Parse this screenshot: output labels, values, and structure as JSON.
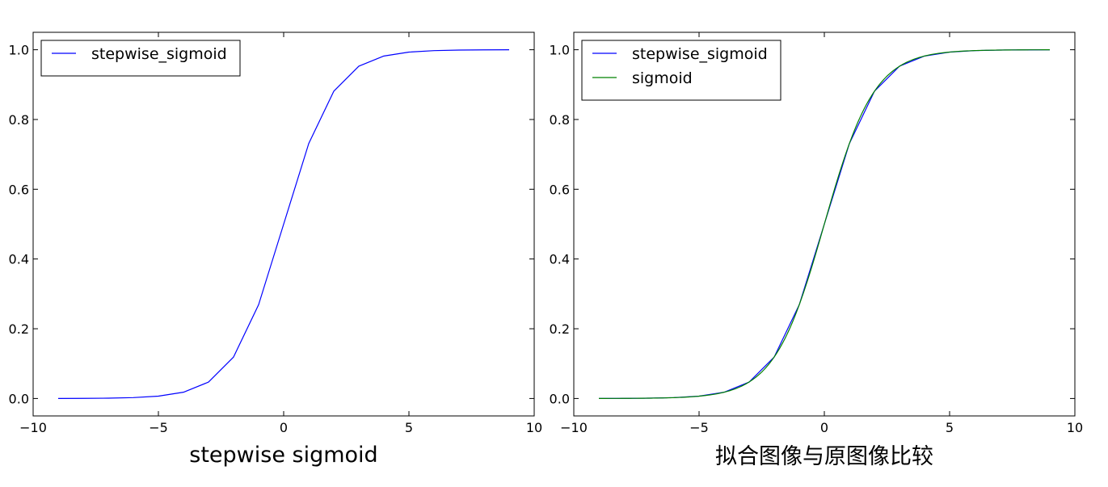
{
  "chart_data": [
    {
      "type": "line",
      "xlabel": "stepwise sigmoid",
      "xlim": [
        -10,
        10
      ],
      "ylim": [
        -0.05,
        1.05
      ],
      "xticks": [
        -10,
        -5,
        0,
        5,
        10
      ],
      "xtick_labels": [
        "−10",
        "−5",
        "0",
        "5",
        "10"
      ],
      "yticks": [
        0.0,
        0.2,
        0.4,
        0.6,
        0.8,
        1.0
      ],
      "ytick_labels": [
        "0.0",
        "0.2",
        "0.4",
        "0.6",
        "0.8",
        "1.0"
      ],
      "grid": false,
      "legend_position": "upper-left",
      "series": [
        {
          "name": "stepwise_sigmoid",
          "color": "#0000ff",
          "x": [
            -9,
            -8,
            -7,
            -6,
            -5,
            -4,
            -3,
            -2,
            -1,
            0,
            1,
            2,
            3,
            4,
            5,
            6,
            7,
            8,
            9
          ],
          "y": [
            0.0001,
            0.0003,
            0.0009,
            0.0025,
            0.0067,
            0.018,
            0.047,
            0.119,
            0.269,
            0.5,
            0.731,
            0.881,
            0.953,
            0.982,
            0.9933,
            0.9975,
            0.9991,
            0.9997,
            0.9999
          ]
        }
      ]
    },
    {
      "type": "line",
      "xlabel": "拟合图像与原图像比较",
      "xlim": [
        -10,
        10
      ],
      "ylim": [
        -0.05,
        1.05
      ],
      "xticks": [
        -10,
        -5,
        0,
        5,
        10
      ],
      "xtick_labels": [
        "−10",
        "−5",
        "0",
        "5",
        "10"
      ],
      "yticks": [
        0.0,
        0.2,
        0.4,
        0.6,
        0.8,
        1.0
      ],
      "ytick_labels": [
        "0.0",
        "0.2",
        "0.4",
        "0.6",
        "0.8",
        "1.0"
      ],
      "grid": false,
      "legend_position": "upper-left",
      "series": [
        {
          "name": "stepwise_sigmoid",
          "color": "#0000ff",
          "x": [
            -9,
            -8,
            -7,
            -6,
            -5,
            -4,
            -3,
            -2,
            -1,
            0,
            1,
            2,
            3,
            4,
            5,
            6,
            7,
            8,
            9
          ],
          "y": [
            0.0001,
            0.0003,
            0.0009,
            0.0025,
            0.0067,
            0.018,
            0.047,
            0.119,
            0.269,
            0.5,
            0.731,
            0.881,
            0.953,
            0.982,
            0.9933,
            0.9975,
            0.9991,
            0.9997,
            0.9999
          ]
        },
        {
          "name": "sigmoid",
          "color": "#008000",
          "function": "1/(1+exp(-x))",
          "x_range": [
            -9,
            9
          ]
        }
      ]
    }
  ]
}
